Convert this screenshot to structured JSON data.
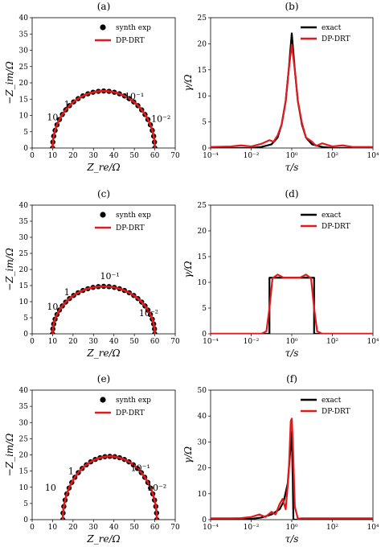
{
  "chart_data": [
    {
      "panel": "(a)",
      "type": "scatter",
      "xlabel": "Z_re/Ω",
      "ylabel": "−Z_im/Ω",
      "xlim": [
        0,
        70
      ],
      "ylim": [
        0,
        40
      ],
      "xticks": [
        "0",
        "10",
        "20",
        "30",
        "40",
        "50",
        "60",
        "70"
      ],
      "yticks": [
        "0",
        "5",
        "10",
        "15",
        "20",
        "25",
        "30",
        "35",
        "40"
      ],
      "legend": [
        "synth exp",
        "DP-DRT"
      ],
      "legend_position": "top-right",
      "center": 35,
      "radius": 25,
      "yscale": 0.7,
      "annotations": [
        {
          "text": "10",
          "x": 10,
          "y": 8.5
        },
        {
          "text": "1",
          "x": 17,
          "y": 12.5
        },
        {
          "text": "10⁻¹",
          "x": 50,
          "y": 15
        },
        {
          "text": "10⁻²",
          "x": 63,
          "y": 8
        }
      ],
      "colors": {
        "exp": "#000000",
        "fit": "#e31a1c"
      }
    },
    {
      "panel": "(b)",
      "type": "line",
      "xlabel": "τ/s",
      "ylabel": "γ/Ω",
      "xlim": [
        -4,
        4
      ],
      "ylim": [
        0,
        25
      ],
      "xticks": [
        "10⁻⁴",
        "10⁻²",
        "10⁰",
        "10²",
        "10⁴"
      ],
      "yticks": [
        "0",
        "5",
        "10",
        "15",
        "20",
        "25"
      ],
      "legend": [
        "exact",
        "DP-DRT"
      ],
      "legend_position": "top-right",
      "series": [
        {
          "name": "exact",
          "color": "#000000",
          "x": [
            -4,
            -2,
            -1.5,
            -1,
            -0.7,
            -0.5,
            -0.3,
            -0.15,
            0,
            0.15,
            0.3,
            0.5,
            0.7,
            1,
            1.5,
            2,
            4
          ],
          "y": [
            0,
            0,
            0.2,
            0.7,
            2,
            4.5,
            9,
            15,
            22,
            15,
            9,
            4.5,
            2,
            0.7,
            0.2,
            0,
            0
          ]
        },
        {
          "name": "DP-DRT",
          "color": "#e31a1c",
          "x": [
            -4,
            -3,
            -2.5,
            -2,
            -1.5,
            -1.1,
            -0.9,
            -0.7,
            -0.5,
            -0.3,
            -0.15,
            0,
            0.15,
            0.3,
            0.5,
            0.7,
            1,
            1.2,
            1.5,
            2,
            2.5,
            3,
            4
          ],
          "y": [
            0.2,
            0.3,
            0.5,
            0.3,
            0.8,
            1.5,
            1.2,
            2.4,
            4.5,
            9,
            15,
            19.8,
            15,
            9,
            4.8,
            2,
            1.2,
            0.4,
            0.9,
            0.3,
            0.5,
            0.2,
            0.2
          ]
        }
      ],
      "colors": {
        "exact": "#000000",
        "fit": "#e31a1c"
      }
    },
    {
      "panel": "(c)",
      "type": "scatter",
      "xlabel": "Z_re/Ω",
      "ylabel": "−Z_im/Ω",
      "xlim": [
        0,
        70
      ],
      "ylim": [
        0,
        40
      ],
      "xticks": [
        "0",
        "10",
        "20",
        "30",
        "40",
        "50",
        "60",
        "70"
      ],
      "yticks": [
        "0",
        "5",
        "10",
        "15",
        "20",
        "25",
        "30",
        "35",
        "40"
      ],
      "legend": [
        "synth exp",
        "DP-DRT"
      ],
      "legend_position": "top-right",
      "center": 35,
      "radius": 25,
      "yscale": 0.59,
      "annotations": [
        {
          "text": "10",
          "x": 10,
          "y": 7.5
        },
        {
          "text": "1",
          "x": 17,
          "y": 12
        },
        {
          "text": "10⁻¹",
          "x": 38,
          "y": 17
        },
        {
          "text": "10⁻²",
          "x": 57,
          "y": 5.5
        }
      ],
      "colors": {
        "exp": "#000000",
        "fit": "#e31a1c"
      }
    },
    {
      "panel": "(d)",
      "type": "line",
      "xlabel": "τ/s",
      "ylabel": "γ/Ω",
      "xlim": [
        -4,
        4
      ],
      "ylim": [
        0,
        25
      ],
      "xticks": [
        "10⁻⁴",
        "10⁻²",
        "10⁰",
        "10²",
        "10⁴"
      ],
      "yticks": [
        "0",
        "5",
        "10",
        "15",
        "20",
        "25"
      ],
      "legend": [
        "exact",
        "DP-DRT"
      ],
      "legend_position": "top-right",
      "series": [
        {
          "name": "exact",
          "color": "#000000",
          "x": [
            -4,
            -1.1,
            -1.1,
            1.1,
            1.1,
            4
          ],
          "y": [
            0,
            0,
            10.9,
            10.9,
            0,
            0
          ]
        },
        {
          "name": "DP-DRT",
          "color": "#e31a1c",
          "x": [
            -4,
            -1.5,
            -1.25,
            -1.1,
            -0.95,
            -0.7,
            -0.4,
            0,
            0.4,
            0.7,
            0.95,
            1.1,
            1.25,
            1.5,
            4
          ],
          "y": [
            0,
            0,
            0.5,
            5,
            10.8,
            11.5,
            10.9,
            10.9,
            10.9,
            11.5,
            10.8,
            5,
            0.5,
            0,
            0
          ]
        }
      ],
      "colors": {
        "exact": "#000000",
        "fit": "#e31a1c"
      }
    },
    {
      "panel": "(e)",
      "type": "scatter",
      "xlabel": "Z_re/Ω",
      "ylabel": "−Z_im/Ω",
      "xlim": [
        0,
        70
      ],
      "ylim": [
        0,
        40
      ],
      "xticks": [
        "0",
        "10",
        "20",
        "30",
        "40",
        "50",
        "60",
        "70"
      ],
      "yticks": [
        "0",
        "5",
        "10",
        "15",
        "20",
        "25",
        "30",
        "35",
        "40"
      ],
      "legend": [
        "synth exp",
        "DP-DRT"
      ],
      "legend_position": "top-right",
      "center": 38,
      "radius": 23,
      "yscale": 0.85,
      "annotations": [
        {
          "text": "10",
          "x": 9,
          "y": 9
        },
        {
          "text": "1",
          "x": 19,
          "y": 14
        },
        {
          "text": "10⁻¹",
          "x": 53,
          "y": 15
        },
        {
          "text": "10⁻²",
          "x": 61,
          "y": 9
        }
      ],
      "colors": {
        "exp": "#000000",
        "fit": "#e31a1c"
      }
    },
    {
      "panel": "(f)",
      "type": "line",
      "xlabel": "τ/s",
      "ylabel": "γ/Ω",
      "xlim": [
        -4,
        4
      ],
      "ylim": [
        0,
        50
      ],
      "xticks": [
        "10⁻⁴",
        "10⁻²",
        "10⁰",
        "10²",
        "10⁴"
      ],
      "yticks": [
        "0",
        "10",
        "20",
        "30",
        "40",
        "50"
      ],
      "legend": [
        "exact",
        "DP-DRT"
      ],
      "legend_position": "top-right",
      "series": [
        {
          "name": "exact",
          "color": "#000000",
          "x": [
            -4,
            -2,
            -1.5,
            -1,
            -0.6,
            -0.4,
            -0.2,
            -0.1,
            0,
            0.05,
            0.08,
            4
          ],
          "y": [
            0,
            0.3,
            0.8,
            2,
            4,
            7,
            14,
            24,
            34,
            15,
            0,
            0
          ]
        },
        {
          "name": "DP-DRT",
          "color": "#e31a1c",
          "x": [
            -4,
            -3,
            -2.5,
            -2,
            -1.6,
            -1.3,
            -1,
            -0.8,
            -0.6,
            -0.45,
            -0.3,
            -0.15,
            -0.05,
            0,
            0.05,
            0.15,
            0.3,
            0.5,
            4
          ],
          "y": [
            0.5,
            0.5,
            0.6,
            1,
            2,
            1,
            3,
            2,
            6,
            8,
            4,
            18,
            38,
            39,
            30,
            5,
            0.4,
            0.5,
            0.5
          ]
        }
      ],
      "colors": {
        "exact": "#000000",
        "fit": "#e31a1c"
      }
    }
  ]
}
